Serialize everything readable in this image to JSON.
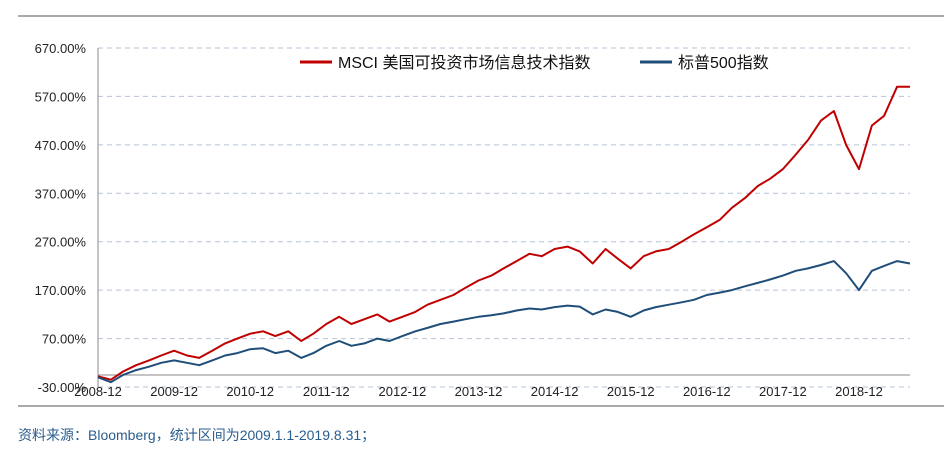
{
  "chart_data": {
    "type": "line",
    "title": "",
    "xlabel": "",
    "ylabel": "",
    "x_ticks": [
      "2008-12",
      "2009-12",
      "2010-12",
      "2011-12",
      "2012-12",
      "2013-12",
      "2014-12",
      "2015-12",
      "2016-12",
      "2017-12",
      "2018-12"
    ],
    "y_ticks": [
      "670.00%",
      "570.00%",
      "470.00%",
      "370.00%",
      "270.00%",
      "170.00%",
      "70.00%",
      "-30.00%"
    ],
    "ylim": [
      -30,
      670
    ],
    "xlim": [
      2009.0,
      2019.67
    ],
    "grid": "horizontal-dashed",
    "legend_position": "top-center",
    "series": [
      {
        "name": "MSCI 美国可投资市场信息技术指数",
        "color": "#c00000",
        "x": [
          2009.0,
          2009.17,
          2009.33,
          2009.5,
          2009.67,
          2009.83,
          2010.0,
          2010.17,
          2010.33,
          2010.5,
          2010.67,
          2010.83,
          2011.0,
          2011.17,
          2011.33,
          2011.5,
          2011.67,
          2011.83,
          2012.0,
          2012.17,
          2012.33,
          2012.5,
          2012.67,
          2012.83,
          2013.0,
          2013.17,
          2013.33,
          2013.5,
          2013.67,
          2013.83,
          2014.0,
          2014.17,
          2014.33,
          2014.5,
          2014.67,
          2014.83,
          2015.0,
          2015.17,
          2015.33,
          2015.5,
          2015.67,
          2015.83,
          2016.0,
          2016.17,
          2016.33,
          2016.5,
          2016.67,
          2016.83,
          2017.0,
          2017.17,
          2017.33,
          2017.5,
          2017.67,
          2017.83,
          2018.0,
          2018.17,
          2018.33,
          2018.5,
          2018.67,
          2018.83,
          2019.0,
          2019.17,
          2019.33,
          2019.5,
          2019.67
        ],
        "y": [
          -8,
          -15,
          2,
          15,
          25,
          35,
          45,
          35,
          30,
          45,
          60,
          70,
          80,
          85,
          75,
          85,
          65,
          80,
          100,
          115,
          100,
          110,
          120,
          105,
          115,
          125,
          140,
          150,
          160,
          175,
          190,
          200,
          215,
          230,
          245,
          240,
          255,
          260,
          250,
          225,
          255,
          235,
          215,
          240,
          250,
          255,
          270,
          285,
          300,
          315,
          340,
          360,
          385,
          400,
          420,
          450,
          480,
          520,
          540,
          470,
          420,
          510,
          530,
          590,
          590
        ]
      },
      {
        "name": "标普500指数",
        "color": "#1f4e79",
        "x": [
          2009.0,
          2009.17,
          2009.33,
          2009.5,
          2009.67,
          2009.83,
          2010.0,
          2010.17,
          2010.33,
          2010.5,
          2010.67,
          2010.83,
          2011.0,
          2011.17,
          2011.33,
          2011.5,
          2011.67,
          2011.83,
          2012.0,
          2012.17,
          2012.33,
          2012.5,
          2012.67,
          2012.83,
          2013.0,
          2013.17,
          2013.33,
          2013.5,
          2013.67,
          2013.83,
          2014.0,
          2014.17,
          2014.33,
          2014.5,
          2014.67,
          2014.83,
          2015.0,
          2015.17,
          2015.33,
          2015.5,
          2015.67,
          2015.83,
          2016.0,
          2016.17,
          2016.33,
          2016.5,
          2016.67,
          2016.83,
          2017.0,
          2017.17,
          2017.33,
          2017.5,
          2017.67,
          2017.83,
          2018.0,
          2018.17,
          2018.33,
          2018.5,
          2018.67,
          2018.83,
          2019.0,
          2019.17,
          2019.33,
          2019.5,
          2019.67
        ],
        "y": [
          -10,
          -20,
          -5,
          5,
          12,
          20,
          25,
          20,
          15,
          25,
          35,
          40,
          48,
          50,
          40,
          45,
          30,
          40,
          55,
          65,
          55,
          60,
          70,
          65,
          75,
          85,
          92,
          100,
          105,
          110,
          115,
          118,
          122,
          128,
          132,
          130,
          135,
          138,
          136,
          120,
          130,
          125,
          115,
          128,
          135,
          140,
          145,
          150,
          160,
          165,
          170,
          178,
          185,
          192,
          200,
          210,
          215,
          222,
          230,
          205,
          170,
          210,
          220,
          230,
          225
        ]
      }
    ]
  },
  "source_note": "资料来源：Bloomberg，统计区间为2009.1.1-2019.8.31；"
}
